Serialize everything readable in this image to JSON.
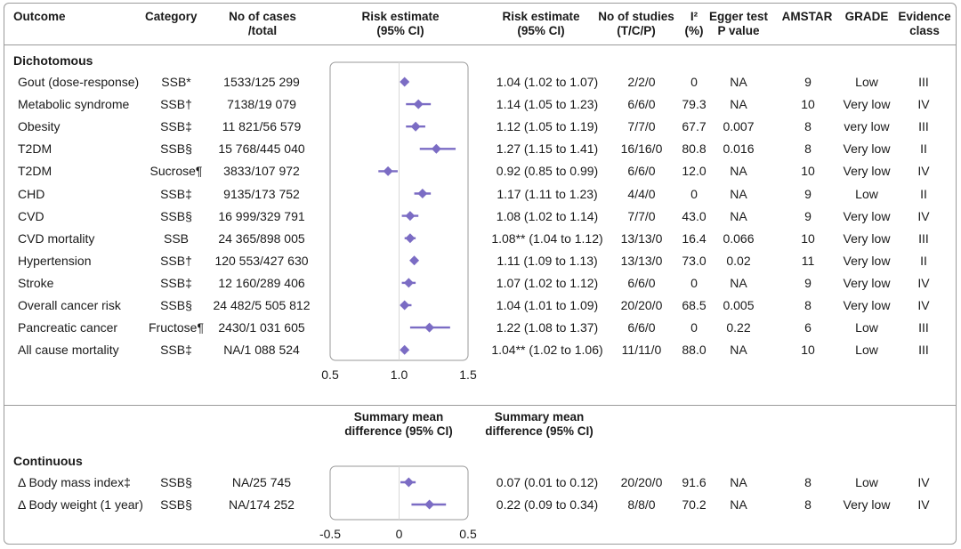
{
  "headers": {
    "outcome": "Outcome",
    "category": "Category",
    "cases_l1": "No of cases",
    "cases_l2": "/total",
    "plot_l1": "Risk estimate",
    "plot_l2": "(95% CI)",
    "est_l1": "Risk estimate",
    "est_l2": "(95% CI)",
    "studies_l1": "No of studies",
    "studies_l2": "(T/C/P)",
    "i2_l1": "I²",
    "i2_l2": "(%)",
    "egger_l1": "Egger test",
    "egger_l2": "P value",
    "amstar": "AMSTAR",
    "grade": "GRADE",
    "evidence_l1": "Evidence",
    "evidence_l2": "class"
  },
  "sections": {
    "dichotomous": "Dichotomous",
    "continuous": "Continuous"
  },
  "continuous_headers": {
    "plot_l1": "Summary mean",
    "plot_l2": "difference (95% CI)",
    "est_l1": "Summary mean",
    "est_l2": "difference (95% CI)"
  },
  "dichotomous_rows": [
    {
      "outcome": "Gout (dose-response)",
      "category": "SSB*",
      "cases": "1533/125 299",
      "estimate": "1.04 (1.02 to 1.07)",
      "studies": "2/2/0",
      "i2": "0",
      "egger": "NA",
      "amstar": "9",
      "grade": "Low",
      "evidence": "III"
    },
    {
      "outcome": "Metabolic syndrome",
      "category": "SSB†",
      "cases": "7138/19 079",
      "estimate": "1.14 (1.05 to 1.23)",
      "studies": "6/6/0",
      "i2": "79.3",
      "egger": "NA",
      "amstar": "10",
      "grade": "Very low",
      "evidence": "IV"
    },
    {
      "outcome": "Obesity",
      "category": "SSB‡",
      "cases": "11 821/56 579",
      "estimate": "1.12 (1.05 to 1.19)",
      "studies": "7/7/0",
      "i2": "67.7",
      "egger": "0.007",
      "amstar": "8",
      "grade": "very low",
      "evidence": "III"
    },
    {
      "outcome": "T2DM",
      "category": "SSB§",
      "cases": "15 768/445 040",
      "estimate": "1.27 (1.15 to 1.41)",
      "studies": "16/16/0",
      "i2": "80.8",
      "egger": "0.016",
      "amstar": "8",
      "grade": "Very low",
      "evidence": "II"
    },
    {
      "outcome": "T2DM",
      "category": "Sucrose¶",
      "cases": "3833/107 972",
      "estimate": "0.92 (0.85 to 0.99)",
      "studies": "6/6/0",
      "i2": "12.0",
      "egger": "NA",
      "amstar": "10",
      "grade": "Very low",
      "evidence": "IV"
    },
    {
      "outcome": "CHD",
      "category": "SSB‡",
      "cases": "9135/173 752",
      "estimate": "1.17 (1.11 to 1.23)",
      "studies": "4/4/0",
      "i2": "0",
      "egger": "NA",
      "amstar": "9",
      "grade": "Low",
      "evidence": "II"
    },
    {
      "outcome": "CVD",
      "category": "SSB§",
      "cases": "16 999/329 791",
      "estimate": "1.08 (1.02 to 1.14)",
      "studies": "7/7/0",
      "i2": "43.0",
      "egger": "NA",
      "amstar": "9",
      "grade": "Very low",
      "evidence": "IV"
    },
    {
      "outcome": "CVD mortality",
      "category": "SSB",
      "cases": "24 365/898 005",
      "estimate": "1.08** (1.04 to 1.12)",
      "studies": "13/13/0",
      "i2": "16.4",
      "egger": "0.066",
      "amstar": "10",
      "grade": "Very low",
      "evidence": "III"
    },
    {
      "outcome": "Hypertension",
      "category": "SSB†",
      "cases": "120 553/427 630",
      "estimate": "1.11 (1.09 to 1.13)",
      "studies": "13/13/0",
      "i2": "73.0",
      "egger": "0.02",
      "amstar": "11",
      "grade": "Very low",
      "evidence": "II"
    },
    {
      "outcome": "Stroke",
      "category": "SSB‡",
      "cases": "12 160/289 406",
      "estimate": "1.07 (1.02 to 1.12)",
      "studies": "6/6/0",
      "i2": "0",
      "egger": "NA",
      "amstar": "9",
      "grade": "Very low",
      "evidence": "IV"
    },
    {
      "outcome": "Overall cancer risk",
      "category": "SSB§",
      "cases": "24 482/5 505 812",
      "estimate": "1.04 (1.01 to 1.09)",
      "studies": "20/20/0",
      "i2": "68.5",
      "egger": "0.005",
      "amstar": "8",
      "grade": "Very low",
      "evidence": "IV"
    },
    {
      "outcome": "Pancreatic cancer",
      "category": "Fructose¶",
      "cases": "2430/1 031 605",
      "estimate": "1.22 (1.08 to 1.37)",
      "studies": "6/6/0",
      "i2": "0",
      "egger": "0.22",
      "amstar": "6",
      "grade": "Low",
      "evidence": "III"
    },
    {
      "outcome": "All cause mortality",
      "category": "SSB‡",
      "cases": "NA/1 088 524",
      "estimate": "1.04** (1.02 to 1.06)",
      "studies": "11/11/0",
      "i2": "88.0",
      "egger": "NA",
      "amstar": "10",
      "grade": "Low",
      "evidence": "III"
    }
  ],
  "continuous_rows": [
    {
      "outcome": "Δ Body mass index‡",
      "category": "SSB§",
      "cases": "NA/25 745",
      "estimate": "0.07 (0.01 to 0.12)",
      "studies": "20/20/0",
      "i2": "91.6",
      "egger": "NA",
      "amstar": "8",
      "grade": "Low",
      "evidence": "IV"
    },
    {
      "outcome": "Δ Body weight (1 year)",
      "category": "SSB§",
      "cases": "NA/174 252",
      "estimate": "0.22 (0.09 to 0.34)",
      "studies": "8/8/0",
      "i2": "70.2",
      "egger": "NA",
      "amstar": "8",
      "grade": "Very low",
      "evidence": "IV"
    }
  ],
  "colors": {
    "marker": "#7b6cc4",
    "frame": "#9a9a9a"
  },
  "chart_data": [
    {
      "type": "scatter",
      "subtype": "forest-plot",
      "ylabel": "Risk estimate (95% CI)",
      "xlim": [
        0.5,
        1.5
      ],
      "ticks": [
        "0.5",
        "1.0",
        "1.5"
      ],
      "tick_values": [
        0.5,
        1.0,
        1.5
      ],
      "reference_line": 1.0,
      "categories": [
        "Gout (dose-response)",
        "Metabolic syndrome",
        "Obesity",
        "T2DM",
        "T2DM",
        "CHD",
        "CVD",
        "CVD mortality",
        "Hypertension",
        "Stroke",
        "Overall cancer risk",
        "Pancreatic cancer",
        "All cause mortality"
      ],
      "estimate": [
        1.04,
        1.14,
        1.12,
        1.27,
        0.92,
        1.17,
        1.08,
        1.08,
        1.11,
        1.07,
        1.04,
        1.22,
        1.04
      ],
      "lower": [
        1.02,
        1.05,
        1.05,
        1.15,
        0.85,
        1.11,
        1.02,
        1.04,
        1.09,
        1.02,
        1.01,
        1.08,
        1.02
      ],
      "upper": [
        1.07,
        1.23,
        1.19,
        1.41,
        0.99,
        1.23,
        1.14,
        1.12,
        1.13,
        1.12,
        1.09,
        1.37,
        1.06
      ]
    },
    {
      "type": "scatter",
      "subtype": "forest-plot",
      "ylabel": "Summary mean difference (95% CI)",
      "xlim": [
        -0.5,
        0.5
      ],
      "ticks": [
        "-0.5",
        "0",
        "0.5"
      ],
      "tick_values": [
        -0.5,
        0,
        0.5
      ],
      "reference_line": 0,
      "categories": [
        "Δ Body mass index‡",
        "Δ Body weight (1 year)"
      ],
      "estimate": [
        0.07,
        0.22
      ],
      "lower": [
        0.01,
        0.09
      ],
      "upper": [
        0.12,
        0.34
      ]
    }
  ]
}
